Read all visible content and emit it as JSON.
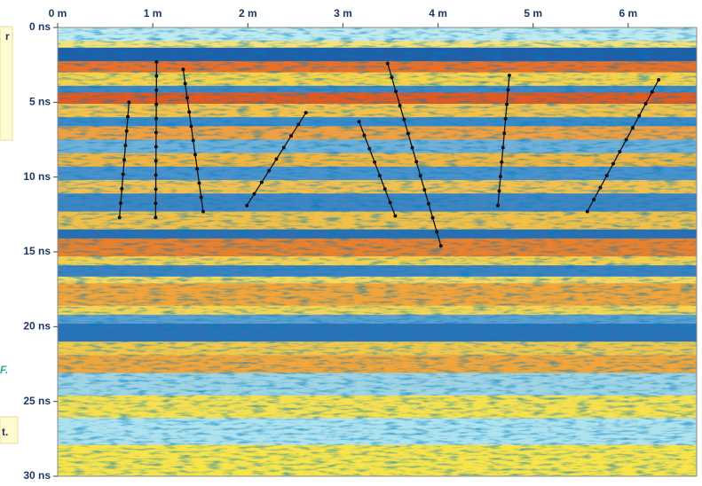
{
  "chart_data": {
    "type": "radargram",
    "xlim": [
      0,
      6.72
    ],
    "ylim": [
      0,
      30
    ],
    "xticks": [
      {
        "value": 0,
        "label": "0 m"
      },
      {
        "value": 1,
        "label": "1 m"
      },
      {
        "value": 2,
        "label": "2 m"
      },
      {
        "value": 3,
        "label": "3 m"
      },
      {
        "value": 4,
        "label": "4 m"
      },
      {
        "value": 5,
        "label": "5 m"
      },
      {
        "value": 6,
        "label": "6 m"
      }
    ],
    "yticks": [
      {
        "value": 0,
        "label": "0 ns"
      },
      {
        "value": 5,
        "label": "5 ns"
      },
      {
        "value": 10,
        "label": "10 ns"
      },
      {
        "value": 15,
        "label": "15 ns"
      },
      {
        "value": 20,
        "label": "20 ns"
      },
      {
        "value": 25,
        "label": "25 ns"
      },
      {
        "value": 30,
        "label": "30 ns"
      }
    ],
    "segments": [
      {
        "x": [
          0.65,
          0.75
        ],
        "y": [
          12.7,
          5.0
        ]
      },
      {
        "x": [
          1.03,
          1.04
        ],
        "y": [
          12.7,
          2.3
        ]
      },
      {
        "x": [
          1.53,
          1.32
        ],
        "y": [
          12.3,
          2.8
        ]
      },
      {
        "x": [
          1.99,
          2.61
        ],
        "y": [
          11.9,
          5.7
        ]
      },
      {
        "x": [
          3.55,
          3.17
        ],
        "y": [
          12.6,
          6.3
        ]
      },
      {
        "x": [
          4.03,
          3.47
        ],
        "y": [
          14.6,
          2.4
        ]
      },
      {
        "x": [
          4.63,
          4.75
        ],
        "y": [
          11.9,
          3.2
        ]
      },
      {
        "x": [
          5.57,
          6.32
        ],
        "y": [
          12.3,
          3.5
        ]
      }
    ],
    "fragments": [
      "r",
      "F.",
      "t."
    ]
  }
}
